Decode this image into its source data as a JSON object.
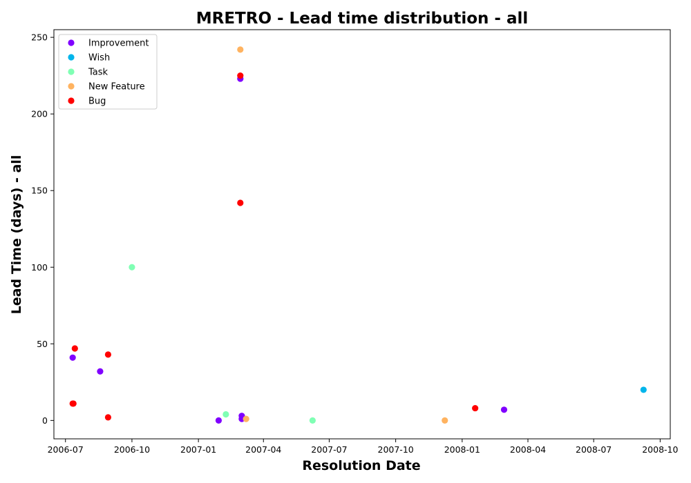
{
  "chart_data": {
    "type": "scatter",
    "title": "MRETRO - Lead time distribution - all",
    "xlabel": "Resolution Date",
    "ylabel": "Lead Time (days) - all",
    "x_type": "date",
    "xlim": [
      "2006-06-15",
      "2008-10-15"
    ],
    "ylim": [
      -12,
      255
    ],
    "x_ticks": [
      "2006-07",
      "2006-10",
      "2007-01",
      "2007-04",
      "2007-07",
      "2007-10",
      "2008-01",
      "2008-04",
      "2008-07",
      "2008-10"
    ],
    "y_ticks": [
      0,
      50,
      100,
      150,
      200,
      250
    ],
    "grid": false,
    "legend_position": "top-left",
    "series": [
      {
        "name": "Improvement",
        "color": "#8000ff",
        "points": [
          {
            "x": "2006-07-11",
            "y": 41
          },
          {
            "x": "2006-08-18",
            "y": 32
          },
          {
            "x": "2007-01-29",
            "y": 0
          },
          {
            "x": "2007-02-28",
            "y": 223
          },
          {
            "x": "2007-03-02",
            "y": 3
          },
          {
            "x": "2007-03-02",
            "y": 1
          },
          {
            "x": "2008-02-28",
            "y": 7
          }
        ]
      },
      {
        "name": "Wish",
        "color": "#00b5eb",
        "points": [
          {
            "x": "2008-09-08",
            "y": 20
          }
        ]
      },
      {
        "name": "Task",
        "color": "#80ffb4",
        "points": [
          {
            "x": "2006-10-01",
            "y": 100
          },
          {
            "x": "2007-02-08",
            "y": 4
          },
          {
            "x": "2007-06-08",
            "y": 0
          }
        ]
      },
      {
        "name": "New Feature",
        "color": "#ffb360",
        "points": [
          {
            "x": "2007-02-28",
            "y": 242
          },
          {
            "x": "2007-03-08",
            "y": 1
          },
          {
            "x": "2007-12-08",
            "y": 0
          }
        ]
      },
      {
        "name": "Bug",
        "color": "#ff0000",
        "points": [
          {
            "x": "2006-07-11",
            "y": 11
          },
          {
            "x": "2006-07-12",
            "y": 11
          },
          {
            "x": "2006-07-14",
            "y": 47
          },
          {
            "x": "2006-08-29",
            "y": 43
          },
          {
            "x": "2006-08-29",
            "y": 2
          },
          {
            "x": "2007-02-28",
            "y": 225
          },
          {
            "x": "2007-02-28",
            "y": 142
          },
          {
            "x": "2008-01-19",
            "y": 8
          }
        ]
      }
    ]
  }
}
